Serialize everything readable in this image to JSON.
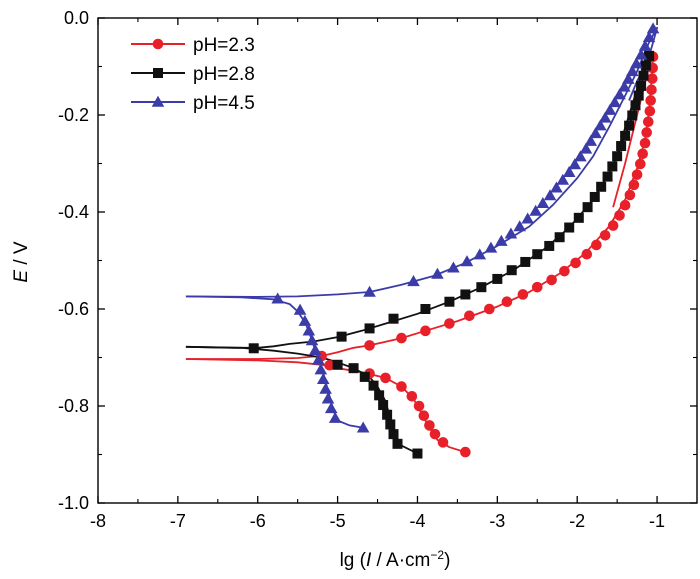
{
  "chart_data": {
    "type": "line",
    "title": "",
    "xlabel_prefix": "lg (",
    "xlabel_italic": "I",
    "xlabel_unit": " / A·cm",
    "xlabel_exp": "−2",
    "xlabel_suffix": ")",
    "ylabel_italic": "E",
    "ylabel_unit": " / V",
    "xlim": [
      -8,
      -0.5
    ],
    "ylim": [
      -1.0,
      0.0
    ],
    "xticks": [
      -8,
      -7,
      -6,
      -5,
      -4,
      -3,
      -2,
      -1
    ],
    "xtick_labels": [
      "-8",
      "-7",
      "-6",
      "-5",
      "-4",
      "-3",
      "-2",
      "-1"
    ],
    "yticks": [
      0.0,
      -0.2,
      -0.4,
      -0.6,
      -0.8,
      -1.0
    ],
    "ytick_labels": [
      "0.0",
      "-0.2",
      "-0.4",
      "-0.6",
      "-0.8",
      "-1.0"
    ],
    "legend_position": "top-left",
    "series": [
      {
        "name": "pH=2.3",
        "color": "#e8202a",
        "marker": "circle",
        "line": [
          [
            -6.9,
            -0.703
          ],
          [
            -6.0,
            -0.703
          ],
          [
            -5.5,
            -0.701
          ],
          [
            -5.3,
            -0.698
          ],
          [
            -5.2,
            -0.697
          ],
          [
            -5.0,
            -0.689
          ],
          [
            -4.8,
            -0.68
          ],
          [
            -4.6,
            -0.675
          ],
          [
            -4.2,
            -0.66
          ],
          [
            -3.9,
            -0.645
          ],
          [
            -3.5,
            -0.625
          ],
          [
            -3.0,
            -0.595
          ],
          [
            -2.6,
            -0.565
          ],
          [
            -2.2,
            -0.525
          ],
          [
            -1.9,
            -0.485
          ],
          [
            -1.6,
            -0.43
          ],
          [
            -1.4,
            -0.375
          ],
          [
            -1.25,
            -0.31
          ],
          [
            -1.15,
            -0.25
          ],
          [
            -1.1,
            -0.19
          ],
          [
            -1.07,
            -0.13
          ],
          [
            -1.05,
            -0.075
          ],
          [
            -1.1,
            -0.1
          ],
          [
            -1.25,
            -0.2
          ],
          [
            -1.4,
            -0.3
          ],
          [
            -1.55,
            -0.39
          ]
        ],
        "cathodic_line": [
          [
            -6.9,
            -0.703
          ],
          [
            -6.0,
            -0.706
          ],
          [
            -5.5,
            -0.71
          ],
          [
            -5.2,
            -0.715
          ],
          [
            -5.0,
            -0.722
          ],
          [
            -4.7,
            -0.73
          ],
          [
            -4.4,
            -0.742
          ],
          [
            -4.2,
            -0.76
          ],
          [
            -4.05,
            -0.785
          ],
          [
            -3.95,
            -0.815
          ],
          [
            -3.85,
            -0.845
          ],
          [
            -3.75,
            -0.87
          ],
          [
            -3.6,
            -0.885
          ],
          [
            -3.4,
            -0.895
          ]
        ],
        "markers": [
          [
            -5.2,
            -0.697
          ],
          [
            -4.6,
            -0.675
          ],
          [
            -4.2,
            -0.66
          ],
          [
            -3.9,
            -0.645
          ],
          [
            -3.6,
            -0.63
          ],
          [
            -3.35,
            -0.614
          ],
          [
            -3.1,
            -0.6
          ],
          [
            -2.88,
            -0.585
          ],
          [
            -2.68,
            -0.57
          ],
          [
            -2.5,
            -0.555
          ],
          [
            -2.32,
            -0.54
          ],
          [
            -2.16,
            -0.522
          ],
          [
            -2.02,
            -0.505
          ],
          [
            -1.88,
            -0.487
          ],
          [
            -1.76,
            -0.468
          ],
          [
            -1.65,
            -0.448
          ],
          [
            -1.55,
            -0.428
          ],
          [
            -1.47,
            -0.407
          ],
          [
            -1.4,
            -0.386
          ],
          [
            -1.34,
            -0.365
          ],
          [
            -1.29,
            -0.344
          ],
          [
            -1.25,
            -0.323
          ],
          [
            -1.21,
            -0.301
          ],
          [
            -1.18,
            -0.28
          ],
          [
            -1.15,
            -0.258
          ],
          [
            -1.13,
            -0.236
          ],
          [
            -1.11,
            -0.214
          ],
          [
            -1.09,
            -0.192
          ],
          [
            -1.08,
            -0.17
          ],
          [
            -1.07,
            -0.148
          ],
          [
            -1.06,
            -0.125
          ],
          [
            -1.055,
            -0.103
          ],
          [
            -1.05,
            -0.08
          ],
          [
            -5.1,
            -0.716
          ],
          [
            -4.6,
            -0.733
          ],
          [
            -4.4,
            -0.742
          ],
          [
            -4.2,
            -0.76
          ],
          [
            -4.07,
            -0.78
          ],
          [
            -3.98,
            -0.8
          ],
          [
            -3.92,
            -0.82
          ],
          [
            -3.85,
            -0.84
          ],
          [
            -3.78,
            -0.858
          ],
          [
            -3.68,
            -0.875
          ],
          [
            -3.4,
            -0.895
          ]
        ]
      },
      {
        "name": "pH=2.8",
        "color": "#111111",
        "marker": "square",
        "line": [
          [
            -6.9,
            -0.678
          ],
          [
            -6.3,
            -0.68
          ],
          [
            -6.0,
            -0.68
          ],
          [
            -5.8,
            -0.677
          ],
          [
            -5.6,
            -0.672
          ],
          [
            -5.3,
            -0.667
          ],
          [
            -5.0,
            -0.658
          ],
          [
            -4.7,
            -0.645
          ],
          [
            -4.4,
            -0.63
          ],
          [
            -4.0,
            -0.61
          ],
          [
            -3.6,
            -0.585
          ],
          [
            -3.2,
            -0.555
          ],
          [
            -2.8,
            -0.52
          ],
          [
            -2.4,
            -0.475
          ],
          [
            -2.1,
            -0.432
          ],
          [
            -1.8,
            -0.375
          ],
          [
            -1.6,
            -0.32
          ],
          [
            -1.45,
            -0.265
          ],
          [
            -1.3,
            -0.2
          ],
          [
            -1.2,
            -0.14
          ],
          [
            -1.1,
            -0.08
          ],
          [
            -1.2,
            -0.12
          ],
          [
            -1.35,
            -0.2
          ],
          [
            -1.5,
            -0.28
          ]
        ],
        "cathodic_line": [
          [
            -6.9,
            -0.678
          ],
          [
            -6.2,
            -0.68
          ],
          [
            -5.8,
            -0.686
          ],
          [
            -5.5,
            -0.692
          ],
          [
            -5.2,
            -0.7
          ],
          [
            -5.0,
            -0.71
          ],
          [
            -4.8,
            -0.722
          ],
          [
            -4.6,
            -0.74
          ],
          [
            -4.5,
            -0.76
          ],
          [
            -4.4,
            -0.79
          ],
          [
            -4.35,
            -0.82
          ],
          [
            -4.3,
            -0.85
          ],
          [
            -4.22,
            -0.88
          ],
          [
            -4.0,
            -0.898
          ]
        ],
        "markers": [
          [
            -6.05,
            -0.681
          ],
          [
            -4.95,
            -0.657
          ],
          [
            -4.6,
            -0.64
          ],
          [
            -4.3,
            -0.62
          ],
          [
            -3.9,
            -0.6
          ],
          [
            -3.6,
            -0.585
          ],
          [
            -3.4,
            -0.57
          ],
          [
            -3.2,
            -0.555
          ],
          [
            -3.0,
            -0.538
          ],
          [
            -2.82,
            -0.52
          ],
          [
            -2.65,
            -0.503
          ],
          [
            -2.5,
            -0.487
          ],
          [
            -2.35,
            -0.47
          ],
          [
            -2.22,
            -0.452
          ],
          [
            -2.1,
            -0.432
          ],
          [
            -1.98,
            -0.412
          ],
          [
            -1.87,
            -0.39
          ],
          [
            -1.78,
            -0.369
          ],
          [
            -1.7,
            -0.348
          ],
          [
            -1.62,
            -0.327
          ],
          [
            -1.56,
            -0.306
          ],
          [
            -1.5,
            -0.285
          ],
          [
            -1.45,
            -0.264
          ],
          [
            -1.4,
            -0.243
          ],
          [
            -1.35,
            -0.222
          ],
          [
            -1.31,
            -0.201
          ],
          [
            -1.27,
            -0.18
          ],
          [
            -1.23,
            -0.16
          ],
          [
            -1.2,
            -0.14
          ],
          [
            -1.17,
            -0.119
          ],
          [
            -1.14,
            -0.098
          ],
          [
            -1.1,
            -0.078
          ],
          [
            -5.0,
            -0.715
          ],
          [
            -4.8,
            -0.722
          ],
          [
            -4.66,
            -0.74
          ],
          [
            -4.55,
            -0.758
          ],
          [
            -4.48,
            -0.778
          ],
          [
            -4.43,
            -0.798
          ],
          [
            -4.38,
            -0.818
          ],
          [
            -4.34,
            -0.838
          ],
          [
            -4.3,
            -0.858
          ],
          [
            -4.25,
            -0.878
          ],
          [
            -4.0,
            -0.898
          ]
        ]
      },
      {
        "name": "pH=4.5",
        "color": "#3c3ca8",
        "marker": "triangle",
        "line": [
          [
            -6.9,
            -0.574
          ],
          [
            -6.0,
            -0.575
          ],
          [
            -5.5,
            -0.574
          ],
          [
            -5.0,
            -0.57
          ],
          [
            -4.6,
            -0.565
          ],
          [
            -4.2,
            -0.55
          ],
          [
            -3.8,
            -0.532
          ],
          [
            -3.4,
            -0.505
          ],
          [
            -3.0,
            -0.47
          ],
          [
            -2.6,
            -0.43
          ],
          [
            -2.3,
            -0.385
          ],
          [
            -2.0,
            -0.33
          ],
          [
            -1.8,
            -0.285
          ],
          [
            -1.6,
            -0.225
          ],
          [
            -1.4,
            -0.16
          ],
          [
            -1.25,
            -0.11
          ],
          [
            -1.1,
            -0.05
          ],
          [
            -1.0,
            -0.02
          ],
          [
            -1.05,
            -0.05
          ],
          [
            -1.12,
            -0.09
          ],
          [
            -1.25,
            -0.13
          ],
          [
            -1.35,
            -0.17
          ]
        ],
        "cathodic_line": [
          [
            -6.9,
            -0.574
          ],
          [
            -6.2,
            -0.576
          ],
          [
            -5.8,
            -0.58
          ],
          [
            -5.6,
            -0.59
          ],
          [
            -5.5,
            -0.605
          ],
          [
            -5.4,
            -0.63
          ],
          [
            -5.33,
            -0.66
          ],
          [
            -5.27,
            -0.69
          ],
          [
            -5.2,
            -0.72
          ],
          [
            -5.15,
            -0.75
          ],
          [
            -5.1,
            -0.78
          ],
          [
            -5.05,
            -0.81
          ],
          [
            -5.0,
            -0.83
          ],
          [
            -4.85,
            -0.84
          ],
          [
            -4.68,
            -0.845
          ]
        ],
        "markers": [
          [
            -5.75,
            -0.579
          ],
          [
            -4.6,
            -0.565
          ],
          [
            -4.05,
            -0.543
          ],
          [
            -3.75,
            -0.528
          ],
          [
            -3.55,
            -0.515
          ],
          [
            -3.38,
            -0.502
          ],
          [
            -3.22,
            -0.488
          ],
          [
            -3.08,
            -0.474
          ],
          [
            -2.95,
            -0.46
          ],
          [
            -2.83,
            -0.445
          ],
          [
            -2.72,
            -0.43
          ],
          [
            -2.62,
            -0.414
          ],
          [
            -2.52,
            -0.398
          ],
          [
            -2.43,
            -0.382
          ],
          [
            -2.34,
            -0.366
          ],
          [
            -2.26,
            -0.35
          ],
          [
            -2.18,
            -0.334
          ],
          [
            -2.1,
            -0.318
          ],
          [
            -2.03,
            -0.302
          ],
          [
            -1.96,
            -0.286
          ],
          [
            -1.89,
            -0.27
          ],
          [
            -1.83,
            -0.254
          ],
          [
            -1.77,
            -0.238
          ],
          [
            -1.71,
            -0.222
          ],
          [
            -1.65,
            -0.206
          ],
          [
            -1.59,
            -0.19
          ],
          [
            -1.53,
            -0.174
          ],
          [
            -1.47,
            -0.158
          ],
          [
            -1.41,
            -0.142
          ],
          [
            -1.36,
            -0.126
          ],
          [
            -1.31,
            -0.11
          ],
          [
            -1.26,
            -0.094
          ],
          [
            -1.2,
            -0.076
          ],
          [
            -1.15,
            -0.058
          ],
          [
            -1.1,
            -0.04
          ],
          [
            -1.05,
            -0.022
          ],
          [
            -5.47,
            -0.602
          ],
          [
            -5.41,
            -0.625
          ],
          [
            -5.36,
            -0.645
          ],
          [
            -5.32,
            -0.665
          ],
          [
            -5.28,
            -0.685
          ],
          [
            -5.24,
            -0.705
          ],
          [
            -5.21,
            -0.725
          ],
          [
            -5.18,
            -0.745
          ],
          [
            -5.15,
            -0.765
          ],
          [
            -5.12,
            -0.785
          ],
          [
            -5.08,
            -0.805
          ],
          [
            -5.03,
            -0.825
          ],
          [
            -4.68,
            -0.845
          ]
        ]
      }
    ]
  }
}
